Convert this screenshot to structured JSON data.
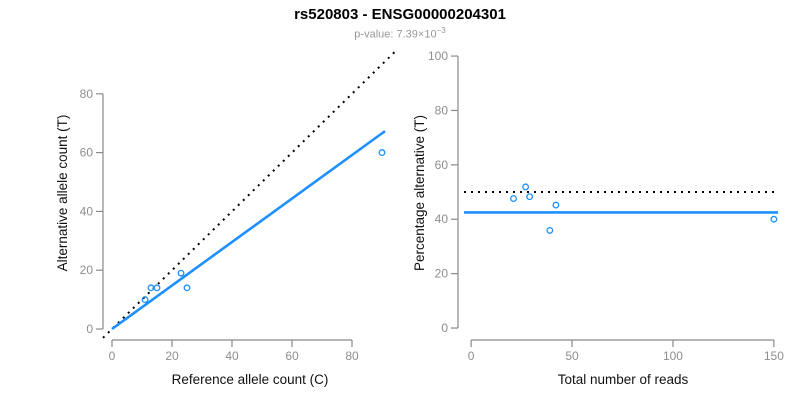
{
  "header": {
    "title": "rs520803 - ENSG00000204301",
    "subtitle_prefix": "p-value: 7.39×10",
    "subtitle_exponent": "−3"
  },
  "colors": {
    "accent_blue": "#1E90FF",
    "dotted_black": "#000000",
    "axis_line_gray": "#8a8a8a",
    "tick_label_gray": "#8e8e8e",
    "axis_title_color": "#111111",
    "subtitle_gray": "#989898"
  },
  "chart_data": [
    {
      "type": "scatter",
      "xlabel": "Reference allele count (C)",
      "ylabel": "Alternative allele count (T)",
      "xlim": [
        0,
        91
      ],
      "ylim": [
        0,
        91
      ],
      "xticks": [
        0,
        20,
        40,
        60,
        80
      ],
      "yticks": [
        0,
        20,
        40,
        60,
        80
      ],
      "points": [
        {
          "x": 11,
          "y": 10
        },
        {
          "x": 13,
          "y": 14
        },
        {
          "x": 15,
          "y": 14
        },
        {
          "x": 23,
          "y": 19
        },
        {
          "x": 25,
          "y": 14
        },
        {
          "x": 90,
          "y": 60
        }
      ],
      "lines": [
        {
          "role": "identity",
          "kind": "abline",
          "slope": 1,
          "intercept": 0,
          "style": "dotted",
          "color": "#000000"
        },
        {
          "role": "fit",
          "kind": "segment",
          "x1": 0,
          "y1": 0,
          "x2": 91,
          "y2": 67.3,
          "style": "solid",
          "color": "#1E90FF"
        }
      ],
      "point_color": "#1E90FF",
      "grid": false,
      "legend": false
    },
    {
      "type": "scatter",
      "xlabel": "Total number of reads",
      "ylabel": "Percentage alternative (T)",
      "xlim": [
        0,
        150
      ],
      "ylim": [
        0,
        100
      ],
      "xticks": [
        0,
        50,
        100,
        150
      ],
      "yticks": [
        0,
        20,
        40,
        60,
        80,
        100
      ],
      "points": [
        {
          "x": 21,
          "y": 47.6
        },
        {
          "x": 27,
          "y": 51.9
        },
        {
          "x": 29,
          "y": 48.3
        },
        {
          "x": 39,
          "y": 35.9
        },
        {
          "x": 42,
          "y": 45.2
        },
        {
          "x": 150,
          "y": 40
        }
      ],
      "lines": [
        {
          "role": "expected-50pct",
          "kind": "hline",
          "y": 50,
          "style": "dotted",
          "color": "#000000"
        },
        {
          "role": "estimated-pct",
          "kind": "hline",
          "y": 42.5,
          "style": "solid",
          "color": "#1E90FF"
        }
      ],
      "point_color": "#1E90FF",
      "grid": false,
      "legend": false
    }
  ]
}
